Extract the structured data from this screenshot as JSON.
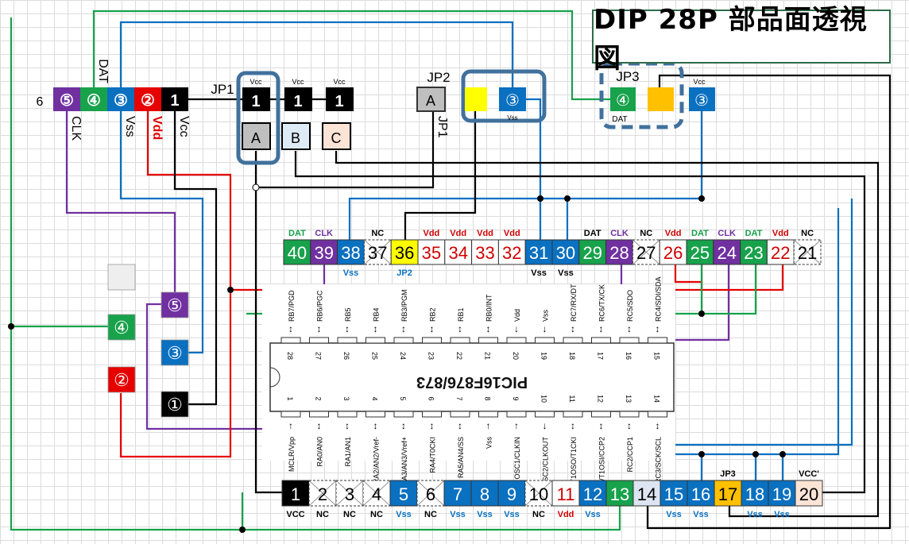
{
  "title": "DIP 28P 部品面透視図",
  "colors": {
    "green": "#17a24b",
    "purple": "#7030a0",
    "blue": "#0a70c0",
    "red": "#e60000",
    "vddText": "#d00000",
    "black": "#000000",
    "yellow": "#ffff00",
    "orange": "#ffc000",
    "highlight": "#41719c",
    "lightblue": "#dde4f2",
    "peach": "#fbe3d6",
    "grayA": "#bfbfbf",
    "B": "#ddebf7"
  },
  "connector": {
    "side_label": "6",
    "pins": [
      {
        "text": "⑤",
        "color": "purple",
        "label": "CLK"
      },
      {
        "text": "④",
        "color": "green",
        "label": "DAT"
      },
      {
        "text": "③",
        "color": "blue",
        "label": "Vss"
      },
      {
        "text": "②",
        "color": "red",
        "label": "Vdd"
      },
      {
        "text": "1",
        "color": "black",
        "label": "Vcc"
      }
    ]
  },
  "jp1": {
    "label": "JP1",
    "side_label": "JP1",
    "pins": [
      {
        "top": "1",
        "vcc": "Vcc",
        "bottom": "A"
      },
      {
        "top": "1",
        "vcc": "Vcc",
        "bottom": "B"
      },
      {
        "top": "1",
        "vcc": "Vcc",
        "bottom": "C"
      }
    ]
  },
  "jp2": {
    "label": "JP2",
    "pin": "A",
    "circle": "③",
    "circle_label": "Vss"
  },
  "jp3": {
    "label": "JP3",
    "circle": "④",
    "circle_label": "DAT",
    "vcc_circle": "③",
    "vcc_label": "Vcc"
  },
  "left_pads": [
    {
      "text": "",
      "color": "gray"
    },
    {
      "text": "⑤",
      "color": "purple"
    },
    {
      "text": "④",
      "color": "green"
    },
    {
      "text": "③",
      "color": "blue"
    },
    {
      "text": "②",
      "color": "red"
    },
    {
      "text": "①",
      "color": "black"
    }
  ],
  "top_pins": [
    {
      "n": "40",
      "style": "green",
      "above": "DAT",
      "aboveColor": "green",
      "below": ""
    },
    {
      "n": "39",
      "style": "purple",
      "above": "CLK",
      "aboveColor": "purple",
      "below": ""
    },
    {
      "n": "38",
      "style": "blue",
      "above": "",
      "below": "Vss",
      "belowColor": "blue"
    },
    {
      "n": "37",
      "style": "nc",
      "above": "NC",
      "aboveColor": "black",
      "below": ""
    },
    {
      "n": "36",
      "style": "yellow",
      "above": "",
      "below": "JP2",
      "belowColor": "blue"
    },
    {
      "n": "35",
      "style": "vdd",
      "above": "Vdd",
      "aboveColor": "red",
      "below": ""
    },
    {
      "n": "34",
      "style": "vdd",
      "above": "Vdd",
      "aboveColor": "red",
      "below": ""
    },
    {
      "n": "33",
      "style": "vdd",
      "above": "Vdd",
      "aboveColor": "red",
      "below": ""
    },
    {
      "n": "32",
      "style": "vdd",
      "above": "Vdd",
      "aboveColor": "red",
      "below": ""
    },
    {
      "n": "31",
      "style": "blue",
      "above": "",
      "below": "Vss",
      "belowColor": "black"
    },
    {
      "n": "30",
      "style": "blue",
      "above": "",
      "below": "Vss",
      "belowColor": "black"
    },
    {
      "n": "29",
      "style": "green",
      "above": "DAT",
      "aboveColor": "black",
      "below": ""
    },
    {
      "n": "28",
      "style": "purple",
      "above": "CLK",
      "aboveColor": "purple",
      "below": ""
    },
    {
      "n": "27",
      "style": "nc",
      "above": "NC",
      "aboveColor": "black",
      "below": ""
    },
    {
      "n": "26",
      "style": "vdd",
      "above": "Vdd",
      "aboveColor": "red",
      "below": ""
    },
    {
      "n": "25",
      "style": "green",
      "above": "DAT",
      "aboveColor": "green",
      "below": ""
    },
    {
      "n": "24",
      "style": "purple",
      "above": "CLK",
      "aboveColor": "purple",
      "below": ""
    },
    {
      "n": "23",
      "style": "green",
      "above": "DAT",
      "aboveColor": "green",
      "below": ""
    },
    {
      "n": "22",
      "style": "vdd",
      "above": "Vdd",
      "aboveColor": "red",
      "below": ""
    },
    {
      "n": "21",
      "style": "nc",
      "above": "NC",
      "aboveColor": "black",
      "below": ""
    }
  ],
  "bottom_pins": [
    {
      "n": "1",
      "style": "black",
      "above": "",
      "below": "VCC",
      "belowColor": "black"
    },
    {
      "n": "2",
      "style": "nc",
      "above": "",
      "below": "NC",
      "belowColor": "black"
    },
    {
      "n": "3",
      "style": "nc",
      "above": "",
      "below": "NC",
      "belowColor": "black"
    },
    {
      "n": "4",
      "style": "nc",
      "above": "",
      "below": "NC",
      "belowColor": "black"
    },
    {
      "n": "5",
      "style": "blue",
      "above": "",
      "below": "Vss",
      "belowColor": "blue"
    },
    {
      "n": "6",
      "style": "nc",
      "above": "",
      "below": "NC",
      "belowColor": "black"
    },
    {
      "n": "7",
      "style": "blue",
      "above": "",
      "below": "Vss",
      "belowColor": "blue"
    },
    {
      "n": "8",
      "style": "blue",
      "above": "",
      "below": "Vss",
      "belowColor": "blue"
    },
    {
      "n": "9",
      "style": "blue",
      "above": "",
      "below": "Vss",
      "belowColor": "blue"
    },
    {
      "n": "10",
      "style": "nc",
      "above": "",
      "below": "NC",
      "belowColor": "black"
    },
    {
      "n": "11",
      "style": "vdd",
      "above": "",
      "below": "Vdd",
      "belowColor": "red"
    },
    {
      "n": "12",
      "style": "blue",
      "above": "",
      "below": "Vss",
      "belowColor": "blue"
    },
    {
      "n": "13",
      "style": "green",
      "above": "",
      "below": ""
    },
    {
      "n": "14",
      "style": "lightblue",
      "above": "",
      "below": ""
    },
    {
      "n": "15",
      "style": "blue",
      "above": "",
      "below": "Vss",
      "belowColor": "blue"
    },
    {
      "n": "16",
      "style": "blue",
      "above": "",
      "below": "Vss",
      "belowColor": "blue"
    },
    {
      "n": "17",
      "style": "orange",
      "above": "JP3",
      "aboveColor": "black",
      "below": ""
    },
    {
      "n": "18",
      "style": "blue",
      "above": "",
      "below": "Vss",
      "belowColor": "blue"
    },
    {
      "n": "19",
      "style": "blue",
      "above": "",
      "below": "Vss",
      "belowColor": "blue"
    },
    {
      "n": "20",
      "style": "peach",
      "above": "VCC'",
      "aboveColor": "black",
      "below": ""
    }
  ],
  "chip": {
    "name": "PIC16F876/873",
    "top_pins": [
      {
        "n": "28",
        "f": "RB7/PGD"
      },
      {
        "n": "27",
        "f": "RB6/PGC"
      },
      {
        "n": "26",
        "f": "RB5"
      },
      {
        "n": "25",
        "f": "RB4"
      },
      {
        "n": "24",
        "f": "RB3/PGM"
      },
      {
        "n": "23",
        "f": "RB2"
      },
      {
        "n": "22",
        "f": "RB1"
      },
      {
        "n": "21",
        "f": "RB0/INT"
      },
      {
        "n": "20",
        "f": "Vdd"
      },
      {
        "n": "19",
        "f": "Vss"
      },
      {
        "n": "18",
        "f": "RC7/RX/DT"
      },
      {
        "n": "17",
        "f": "RC6/TX/CK"
      },
      {
        "n": "16",
        "f": "RC5/SDO"
      },
      {
        "n": "15",
        "f": "RC4/SDI/SDA"
      }
    ],
    "bottom_pins": [
      {
        "n": "1",
        "f": "MCLR/Vpp"
      },
      {
        "n": "2",
        "f": "RA0/AN0"
      },
      {
        "n": "3",
        "f": "RA1/AN1"
      },
      {
        "n": "4",
        "f": "RA2/AN2/Vref-"
      },
      {
        "n": "5",
        "f": "RA3/AN3/Vref+"
      },
      {
        "n": "6",
        "f": "RA4/T0CKI"
      },
      {
        "n": "7",
        "f": "RA5/AN4/SS"
      },
      {
        "n": "8",
        "f": "Vss"
      },
      {
        "n": "9",
        "f": "OSC1/CLKIN"
      },
      {
        "n": "10",
        "f": "OSC2/CLKOUT"
      },
      {
        "n": "11",
        "f": "RC0/T1OSO/T1CKI"
      },
      {
        "n": "12",
        "f": "RC1/T1OSI/CCP2"
      },
      {
        "n": "13",
        "f": "RC2/CCP1"
      },
      {
        "n": "14",
        "f": "RC3/SCK/SCL"
      }
    ]
  }
}
